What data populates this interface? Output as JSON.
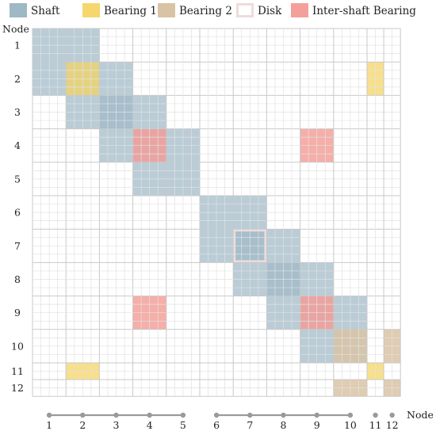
{
  "legend": [
    {
      "key": "shaft",
      "label": "Shaft",
      "color": "#9fb8c6",
      "style": "fill"
    },
    {
      "key": "bearing1",
      "label": "Bearing 1",
      "color": "#f5d76e",
      "style": "fill"
    },
    {
      "key": "bearing2",
      "label": "Bearing 2",
      "color": "#d9c3a5",
      "style": "fill"
    },
    {
      "key": "disk",
      "label": "Disk",
      "color": "#eddcdc",
      "style": "outline"
    },
    {
      "key": "intershaft",
      "label": "Inter-shaft Bearing",
      "color": "#f4a09a",
      "style": "fill"
    }
  ],
  "axis": {
    "row_title": "Node",
    "col_title": "Node"
  },
  "nodes": {
    "row_labels": [
      "1",
      "2",
      "3",
      "4",
      "5",
      "6",
      "7",
      "8",
      "9",
      "10",
      "11",
      "12"
    ],
    "col_labels": [
      "1",
      "2",
      "3",
      "4",
      "5",
      "6",
      "7",
      "8",
      "9",
      "10",
      "11",
      "12"
    ],
    "full_nodes": 10,
    "shaft_groups": [
      [
        1,
        5
      ],
      [
        6,
        10
      ]
    ],
    "single_nodes": [
      11,
      12
    ]
  },
  "matrix": {
    "shaft_blocks": [
      [
        1,
        2
      ],
      [
        2,
        3
      ],
      [
        3,
        4
      ],
      [
        4,
        5
      ],
      [
        6,
        7
      ],
      [
        7,
        8
      ],
      [
        8,
        9
      ],
      [
        9,
        10
      ]
    ],
    "intershaft": [
      [
        4,
        4
      ],
      [
        4,
        9
      ],
      [
        9,
        4
      ],
      [
        9,
        9
      ]
    ],
    "bearing1": [
      [
        2,
        2
      ],
      [
        2,
        11
      ],
      [
        11,
        2
      ],
      [
        11,
        11
      ]
    ],
    "bearing2": [
      [
        10,
        10
      ],
      [
        10,
        12
      ],
      [
        12,
        10
      ],
      [
        12,
        12
      ]
    ],
    "disk": [
      [
        7,
        7
      ]
    ]
  }
}
